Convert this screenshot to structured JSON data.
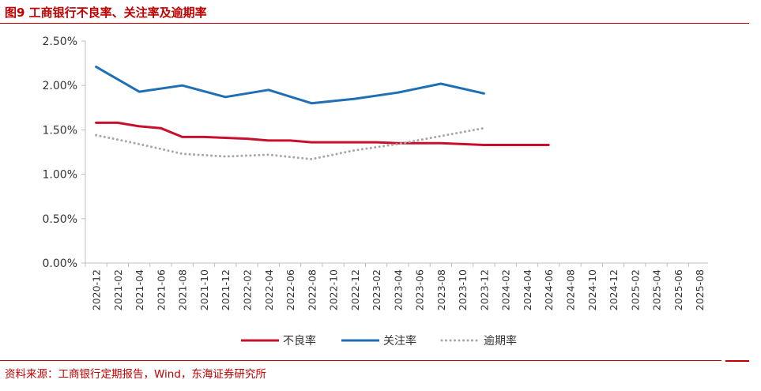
{
  "title": "图9  工商银行不良率、关注率及逾期率",
  "source": "资料来源：工商银行定期报告，Wind，东海证券研究所",
  "chart_data": {
    "type": "line",
    "categories": [
      "2020-12",
      "2021-02",
      "2021-04",
      "2021-06",
      "2021-08",
      "2021-10",
      "2021-12",
      "2022-02",
      "2022-04",
      "2022-06",
      "2022-08",
      "2022-10",
      "2022-12",
      "2023-02",
      "2023-04",
      "2023-06",
      "2023-08",
      "2023-10",
      "2023-12",
      "2024-02",
      "2024-04",
      "2024-06",
      "2024-08",
      "2024-10",
      "2024-12",
      "2025-02",
      "2025-04",
      "2025-06",
      "2025-08"
    ],
    "ylim": [
      0,
      2.5
    ],
    "yticks": [
      0,
      0.5,
      1.0,
      1.5,
      2.0,
      2.5
    ],
    "ytick_labels": [
      "0.00%",
      "0.50%",
      "1.00%",
      "1.50%",
      "2.00%",
      "2.50%"
    ],
    "legend_position": "bottom",
    "series": [
      {
        "name": "不良率",
        "color": "#c8102e",
        "style": "solid",
        "points": [
          {
            "x": "2020-12",
            "y": 1.58
          },
          {
            "x": "2021-02",
            "y": 1.58
          },
          {
            "x": "2021-04",
            "y": 1.54
          },
          {
            "x": "2021-06",
            "y": 1.52
          },
          {
            "x": "2021-08",
            "y": 1.42
          },
          {
            "x": "2021-10",
            "y": 1.42
          },
          {
            "x": "2021-12",
            "y": 1.41
          },
          {
            "x": "2022-02",
            "y": 1.4
          },
          {
            "x": "2022-04",
            "y": 1.38
          },
          {
            "x": "2022-06",
            "y": 1.38
          },
          {
            "x": "2022-08",
            "y": 1.36
          },
          {
            "x": "2022-10",
            "y": 1.36
          },
          {
            "x": "2022-12",
            "y": 1.36
          },
          {
            "x": "2023-02",
            "y": 1.36
          },
          {
            "x": "2023-04",
            "y": 1.35
          },
          {
            "x": "2023-06",
            "y": 1.35
          },
          {
            "x": "2023-08",
            "y": 1.35
          },
          {
            "x": "2023-10",
            "y": 1.34
          },
          {
            "x": "2023-12",
            "y": 1.33
          },
          {
            "x": "2024-02",
            "y": 1.33
          },
          {
            "x": "2024-04",
            "y": 1.33
          },
          {
            "x": "2024-06",
            "y": 1.33
          }
        ]
      },
      {
        "name": "关注率",
        "color": "#1f6fb5",
        "style": "solid",
        "points": [
          {
            "x": "2020-12",
            "y": 2.21
          },
          {
            "x": "2021-04",
            "y": 1.93
          },
          {
            "x": "2021-08",
            "y": 2.0
          },
          {
            "x": "2021-12",
            "y": 1.87
          },
          {
            "x": "2022-04",
            "y": 1.95
          },
          {
            "x": "2022-08",
            "y": 1.8
          },
          {
            "x": "2022-12",
            "y": 1.85
          },
          {
            "x": "2023-04",
            "y": 1.92
          },
          {
            "x": "2023-08",
            "y": 2.02
          },
          {
            "x": "2023-12",
            "y": 1.91
          }
        ]
      },
      {
        "name": "逾期率",
        "color": "#a6a6a6",
        "style": "dotted",
        "points": [
          {
            "x": "2020-12",
            "y": 1.44
          },
          {
            "x": "2021-04",
            "y": 1.34
          },
          {
            "x": "2021-08",
            "y": 1.23
          },
          {
            "x": "2021-12",
            "y": 1.2
          },
          {
            "x": "2022-04",
            "y": 1.22
          },
          {
            "x": "2022-08",
            "y": 1.17
          },
          {
            "x": "2022-12",
            "y": 1.27
          },
          {
            "x": "2023-04",
            "y": 1.34
          },
          {
            "x": "2023-08",
            "y": 1.43
          },
          {
            "x": "2023-12",
            "y": 1.52
          }
        ]
      }
    ]
  }
}
